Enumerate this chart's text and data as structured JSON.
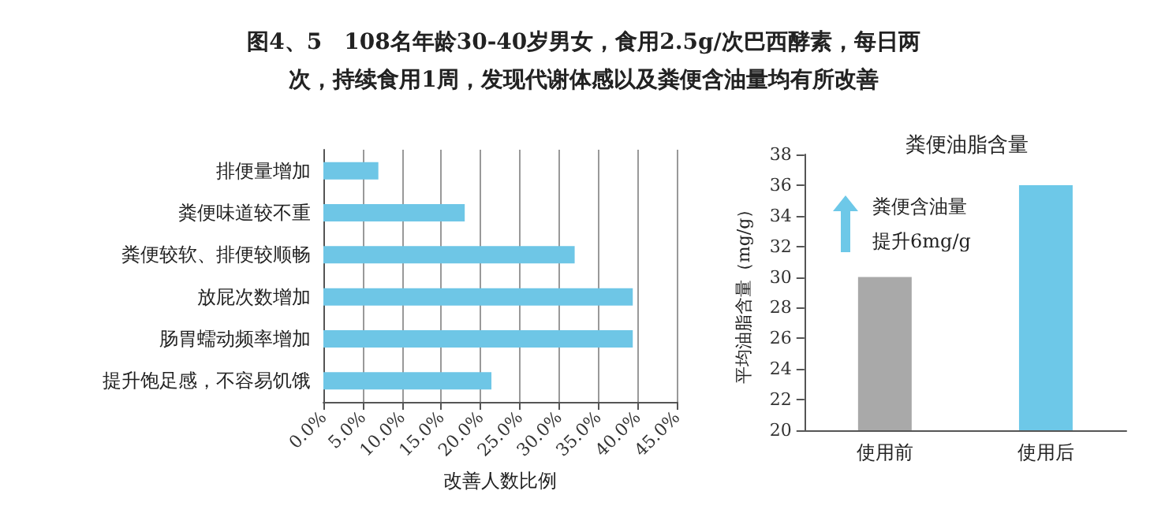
{
  "chart_data": [
    {
      "type": "bar",
      "orientation": "horizontal",
      "title": "图4、5　108名年龄30-40岁男女，食用2.5g/次巴西酵素，每日两次，持续食用1周，发现代谢体感以及粪便含油量均有所改善",
      "xlabel": "改善人数比例",
      "categories": [
        "排便量增加",
        "粪便味道较不重",
        "粪便较软、排便较顺畅",
        "放屁次数增加",
        "肠胃蠕动频率增加",
        "提升饱足感，不容易饥饿"
      ],
      "values": [
        7.0,
        18,
        32,
        39.4,
        39.4,
        21.4
      ],
      "color": "#6ec6e6",
      "xlim": [
        0,
        45
      ],
      "xticks": [
        {
          "value": 0,
          "label": "0.0%"
        },
        {
          "value": 5,
          "label": "5.0%"
        },
        {
          "value": 10,
          "label": "10.0%"
        },
        {
          "value": 15,
          "label": "15.0%"
        },
        {
          "value": 20,
          "label": "20.0%"
        },
        {
          "value": 25,
          "label": "25.0%"
        },
        {
          "value": 30,
          "label": "30.0%"
        },
        {
          "value": 35,
          "label": "35.0%"
        },
        {
          "value": 40,
          "label": "40.0%"
        },
        {
          "value": 45,
          "label": "45.0%"
        }
      ],
      "grid": "x"
    },
    {
      "type": "bar",
      "title": "粪便油脂含量",
      "ylabel": "平均油脂含量（mg/g）",
      "categories": [
        "使用前",
        "使用后"
      ],
      "values": [
        30,
        36
      ],
      "colors": [
        "#a9a9a9",
        "#6dc8e8"
      ],
      "ylim": [
        20,
        38
      ],
      "yticks": [
        20,
        22,
        24,
        26,
        28,
        30,
        32,
        34,
        36,
        38
      ],
      "grid": false,
      "annotations": [
        "粪便含油量提升6mg/g"
      ]
    }
  ]
}
